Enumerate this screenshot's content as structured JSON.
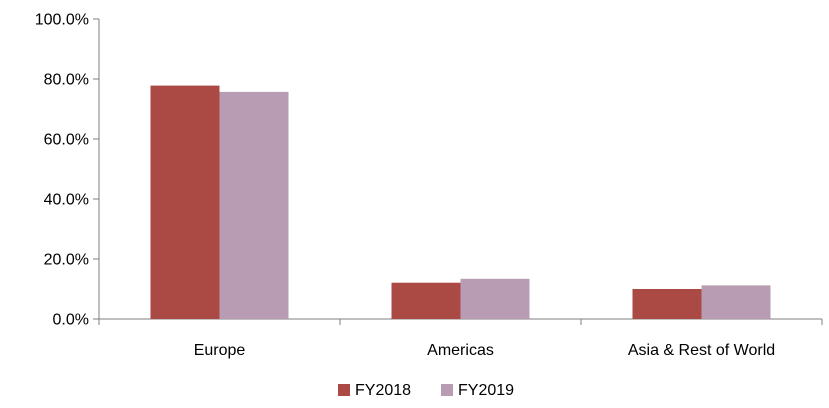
{
  "chart_data": {
    "type": "bar",
    "title": "",
    "xlabel": "",
    "ylabel": "",
    "categories": [
      "Europe",
      "Americas",
      "Asia & Rest of World"
    ],
    "series": [
      {
        "name": "FY2018",
        "color": "#ab4a45",
        "values": [
          77.8,
          12.1,
          10.0
        ]
      },
      {
        "name": "FY2019",
        "color": "#b79cb3",
        "values": [
          75.7,
          13.4,
          11.2
        ]
      }
    ],
    "ylim": [
      0,
      100
    ],
    "yticks": [
      0,
      20,
      40,
      60,
      80,
      100
    ],
    "ytick_labels": [
      "0.0%",
      "20.0%",
      "40.0%",
      "60.0%",
      "80.0%",
      "100.0%"
    ],
    "grid": false,
    "legend_position": "bottom-center"
  }
}
